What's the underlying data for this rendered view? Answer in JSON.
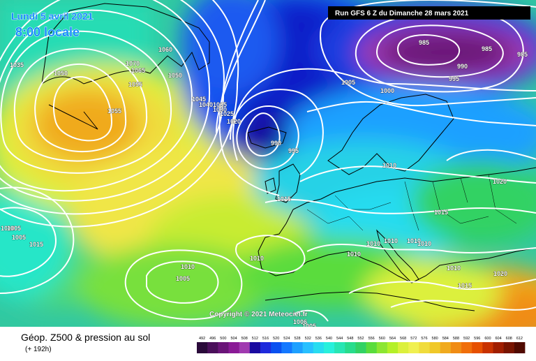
{
  "map": {
    "valid_date": "Lundi 5 avril 2021",
    "valid_time": "8:00 locale",
    "run_info": "Run GFS 6 Z du Dimanche 28 mars 2021",
    "copyright": "Copyright © 2021 Meteociel.fr"
  },
  "isobar_labels": [
    "1035",
    "1050",
    "1060",
    "1070",
    "1065",
    "1050",
    "1055",
    "1055",
    "1045",
    "1040",
    "1035",
    "1030",
    "1025",
    "1020",
    "990",
    "995",
    "1005",
    "1000",
    "985",
    "985",
    "985",
    "990",
    "995",
    "1010",
    "1015",
    "1010",
    "1020",
    "1015",
    "1010",
    "1010",
    "1010",
    "1010",
    "1010",
    "1010",
    "1020",
    "1015",
    "1010",
    "1005",
    "1010",
    "1015",
    "1005",
    "1005",
    "1006",
    "1005"
  ],
  "legend": {
    "title": "Géop. Z500 & pression au sol",
    "subtitle": "(+ 192h)",
    "ticks": [
      "492",
      "496",
      "500",
      "504",
      "508",
      "512",
      "516",
      "520",
      "524",
      "528",
      "532",
      "536",
      "540",
      "544",
      "548",
      "552",
      "556",
      "560",
      "564",
      "568",
      "572",
      "576",
      "580",
      "584",
      "588",
      "592",
      "596",
      "600",
      "604",
      "608",
      "612"
    ],
    "colors": [
      "#2a0a3a",
      "#4a0f5a",
      "#6a1478",
      "#8a1a96",
      "#a03ab0",
      "#1a0aa0",
      "#1e2adc",
      "#0a50f0",
      "#1478ff",
      "#1ea0ff",
      "#28c0ff",
      "#28dcf0",
      "#28f0dc",
      "#28e6b4",
      "#28dc8c",
      "#32d264",
      "#5adc3c",
      "#8ce632",
      "#b4f028",
      "#dcf03c",
      "#f0f050",
      "#f0dc3c",
      "#f0c828",
      "#f0aa1e",
      "#f08c14",
      "#f06e0a",
      "#e65000",
      "#c83200",
      "#a01e00",
      "#781400",
      "#500a00"
    ]
  },
  "colors": {
    "isobar": "#ffffff",
    "coast": "#000000",
    "accent_title": "#1a8cff"
  }
}
